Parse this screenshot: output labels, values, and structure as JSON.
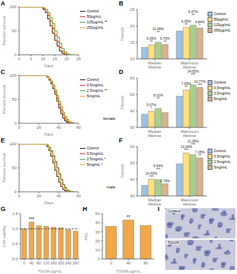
{
  "chart_data": [
    {
      "type": "line",
      "title": "A",
      "xlabel": "Days",
      "ylabel": "Percent survival",
      "line_style": "step",
      "legend": "right",
      "x": [
        0,
        8,
        10,
        11,
        12,
        13,
        14,
        15,
        16,
        17,
        18,
        19,
        20,
        21,
        22
      ],
      "xlim": [
        0,
        25
      ],
      "xticks": [
        0,
        5,
        10,
        15,
        20,
        25
      ],
      "ylim": [
        0,
        100
      ],
      "yticks": [
        0,
        50,
        100
      ],
      "series": [
        {
          "name": "Control",
          "color": "#000000",
          "values": [
            100,
            100,
            95,
            88,
            75,
            60,
            45,
            30,
            18,
            8,
            3,
            0,
            0,
            0,
            0
          ]
        },
        {
          "name": "50μg/mL",
          "color": "#e41a1c",
          "values": [
            100,
            100,
            97,
            92,
            82,
            70,
            55,
            40,
            27,
            15,
            7,
            2,
            0,
            0,
            0
          ]
        },
        {
          "name": "125μg/mL **",
          "color": "#2e9e3e",
          "values": [
            100,
            100,
            98,
            95,
            88,
            78,
            65,
            50,
            37,
            24,
            13,
            6,
            2,
            0,
            0
          ]
        },
        {
          "name": "250μg/mL",
          "color": "#f39c12",
          "values": [
            100,
            100,
            97,
            92,
            84,
            72,
            57,
            42,
            29,
            17,
            8,
            3,
            1,
            0,
            0
          ]
        }
      ]
    },
    {
      "type": "bar",
      "title": "B",
      "ylabel": "Time(d)",
      "legend": "right",
      "categories": [
        "Median lifetime",
        "Maximum lifetime"
      ],
      "ylim": [
        10,
        25
      ],
      "yticks": [
        10,
        15,
        20,
        25
      ],
      "series": [
        {
          "name": "Control",
          "color": "#9dc3e6",
          "values": [
            13.5,
            18.5
          ]
        },
        {
          "name": "50μg/mL",
          "color": "#ffe17a",
          "values": [
            14.32,
            19.62
          ],
          "annotations": [
            "6.05% **",
            "6.05% **"
          ]
        },
        {
          "name": "125μg/mL",
          "color": "#a9d18e",
          "values": [
            15.05,
            20.25
          ],
          "annotations": [
            "11.49% **",
            "9.47% **"
          ]
        },
        {
          "name": "250μg/mL",
          "color": "#d9b38c",
          "values": [
            14.4,
            19.4
          ],
          "annotations": [
            "6.70% **",
            "4.84% *"
          ]
        }
      ]
    },
    {
      "type": "line",
      "title": "C",
      "xlabel": "Days",
      "ylabel": "Percent survival",
      "line_style": "step",
      "legend": "right",
      "annotations": [
        "female"
      ],
      "x": [
        0,
        25,
        28,
        30,
        32,
        34,
        36,
        38,
        40,
        42,
        44,
        46,
        48,
        50,
        52,
        54,
        56
      ],
      "xlim": [
        0,
        60
      ],
      "xticks": [
        0,
        20,
        40,
        60
      ],
      "ylim": [
        0,
        100
      ],
      "yticks": [
        0,
        50,
        100
      ],
      "series": [
        {
          "name": "Control",
          "color": "#000000",
          "values": [
            100,
            100,
            96,
            90,
            82,
            72,
            60,
            46,
            32,
            20,
            11,
            5,
            2,
            0,
            0,
            0,
            0
          ]
        },
        {
          "name": "0.5mg/mL",
          "color": "#e41a1c",
          "values": [
            100,
            100,
            97,
            92,
            85,
            76,
            65,
            52,
            39,
            27,
            17,
            9,
            4,
            1,
            0,
            0,
            0
          ]
        },
        {
          "name": "2.5mg/mL **",
          "color": "#2e9e3e",
          "values": [
            100,
            100,
            98,
            94,
            88,
            80,
            70,
            58,
            46,
            34,
            23,
            14,
            8,
            4,
            2,
            0,
            0
          ]
        },
        {
          "name": "5mg/mL",
          "color": "#f39c12",
          "values": [
            100,
            100,
            97,
            92,
            86,
            77,
            67,
            54,
            42,
            30,
            20,
            12,
            6,
            3,
            1,
            0,
            0
          ]
        }
      ]
    },
    {
      "type": "bar",
      "title": "D",
      "ylabel": "Time(d)",
      "legend": "right",
      "categories": [
        "Median lifetime",
        "Maximum lifetime"
      ],
      "ylim": [
        30,
        60
      ],
      "yticks": [
        30,
        40,
        50,
        60
      ],
      "series": [
        {
          "name": "Control",
          "color": "#9dc3e6",
          "values": [
            38,
            49
          ]
        },
        {
          "name": "0.5mg/mL",
          "color": "#ffe17a",
          "values": [
            39.93,
            52.77
          ],
          "annotations": [
            "5.07% *",
            "7.69% **"
          ]
        },
        {
          "name": "2.5mg/mL",
          "color": "#a9d18e",
          "values": [
            41.42,
            55.88
          ],
          "annotations": [
            "9.01% **",
            "14.05% ***"
          ]
        },
        {
          "name": "5mg/mL",
          "color": "#d9b38c",
          "values": [
            39.0,
            54.28
          ],
          "annotations": [
            null,
            "10.77% ***"
          ]
        }
      ]
    },
    {
      "type": "line",
      "title": "E",
      "xlabel": "Days",
      "ylabel": "Percent survival",
      "line_style": "step",
      "legend": "right",
      "annotations": [
        "male"
      ],
      "x": [
        0,
        25,
        28,
        30,
        32,
        34,
        36,
        38,
        40,
        42,
        44,
        46,
        48,
        50,
        52,
        54,
        56
      ],
      "xlim": [
        0,
        60
      ],
      "xticks": [
        0,
        20,
        40,
        60
      ],
      "ylim": [
        0,
        100
      ],
      "yticks": [
        0,
        50,
        100
      ],
      "series": [
        {
          "name": "Control",
          "color": "#000000",
          "values": [
            100,
            100,
            94,
            86,
            74,
            60,
            45,
            32,
            20,
            11,
            5,
            2,
            0,
            0,
            0,
            0,
            0
          ]
        },
        {
          "name": "0.5mg/mL",
          "color": "#e41a1c",
          "values": [
            100,
            100,
            97,
            92,
            84,
            74,
            62,
            50,
            37,
            25,
            15,
            8,
            3,
            1,
            0,
            0,
            0
          ]
        },
        {
          "name": "2.5mg/mL *",
          "color": "#2e9e3e",
          "values": [
            100,
            100,
            98,
            93,
            86,
            76,
            64,
            51,
            38,
            26,
            16,
            9,
            4,
            2,
            0,
            0,
            0
          ]
        },
        {
          "name": "5mg/mL *",
          "color": "#f39c12",
          "values": [
            100,
            100,
            97,
            90,
            80,
            67,
            53,
            40,
            28,
            17,
            9,
            4,
            1,
            0,
            0,
            0,
            0
          ]
        }
      ]
    },
    {
      "type": "bar",
      "title": "F",
      "ylabel": "Time(d)",
      "legend": "right",
      "categories": [
        "Median lifetime",
        "Maximum lifetime"
      ],
      "ylim": [
        30,
        60
      ],
      "yticks": [
        30,
        40,
        50,
        60
      ],
      "series": [
        {
          "name": "Control",
          "color": "#9dc3e6",
          "values": [
            36.4,
            49.5
          ]
        },
        {
          "name": "0.5mg/mL",
          "color": "#ffe17a",
          "values": [
            40.2,
            56.1
          ],
          "annotations": [
            "10.43% ***",
            "13.34% ***"
          ]
        },
        {
          "name": "2.5mg/mL",
          "color": "#a9d18e",
          "values": [
            39.9,
            55.1
          ],
          "annotations": [
            "9.54% ***",
            "11.26% ***"
          ]
        },
        {
          "name": "5mg/mL",
          "color": "#d9b38c",
          "values": [
            37.4,
            53.1
          ],
          "annotations": [
            "2.79%",
            "7.28% **"
          ]
        }
      ]
    },
    {
      "type": "bar",
      "title": "G",
      "ylabel": "Cell viability",
      "xlabel": "TGGR-μg/mL",
      "categories": [
        "0",
        "40",
        "80",
        "120",
        "160",
        "200",
        "240",
        "280"
      ],
      "values": [
        1.0,
        1.22,
        1.1,
        1.08,
        1.05,
        1.03,
        0.97,
        0.92
      ],
      "color": "#f0a848",
      "ylim": [
        0,
        1.5
      ],
      "yticks": [
        {
          "value": 0,
          "label": "0.0"
        },
        0.5,
        {
          "value": 1,
          "label": "1.0"
        },
        1.5
      ],
      "reference_y": 1,
      "annotations": [
        {
          "category": "40",
          "text": "***"
        }
      ]
    },
    {
      "type": "bar",
      "title": "H",
      "ylabel": "PDL",
      "xlabel": "TGGR-μg/mL",
      "categories": [
        "0",
        "40",
        "80"
      ],
      "values": [
        36,
        43,
        37
      ],
      "color": "#f0a848",
      "ylim": [
        0,
        50
      ],
      "yticks": [
        0,
        10,
        20,
        30,
        40,
        50
      ],
      "annotations": [
        {
          "category": "40",
          "text": "**"
        }
      ]
    },
    {
      "type": "image",
      "title": "I",
      "annotations": [
        "Control",
        "TGGR"
      ]
    }
  ]
}
